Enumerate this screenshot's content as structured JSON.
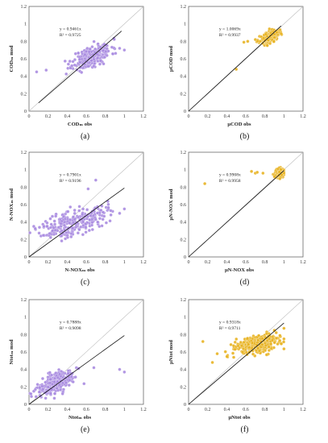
{
  "chart_data": [
    {
      "type": "scatter",
      "panel": "(a)",
      "xlabel": "CODₘ obs",
      "ylabel": "CODₘ mod",
      "xlim": [
        0,
        1.2
      ],
      "ylim": [
        0,
        1.2
      ],
      "ticks": [
        "0",
        "0.2",
        "0.4",
        "0.6",
        "0.8",
        "1",
        "1.2"
      ],
      "color": "#a98be0",
      "equation": "y = 0.9461x",
      "r2": "R² = 0.9725",
      "slope": 0.9461,
      "fit_range": [
        0.1,
        0.97
      ],
      "cloud": {
        "mx": 0.66,
        "my": 0.63,
        "sx": 0.1,
        "sy": 0.07,
        "rho": 0.55,
        "n": 260,
        "seed": 11,
        "outliers": [
          [
            0.08,
            0.45
          ],
          [
            0.18,
            0.47
          ],
          [
            1.0,
            0.7
          ],
          [
            0.95,
            0.72
          ],
          [
            0.45,
            0.52
          ]
        ]
      }
    },
    {
      "type": "scatter",
      "panel": "(b)",
      "xlabel": "μCOD obs",
      "ylabel": "μCOD mod",
      "xlim": [
        0,
        1.2
      ],
      "ylim": [
        0,
        1.2
      ],
      "ticks": [
        "0",
        "0.2",
        "0.4",
        "0.6",
        "0.8",
        "1",
        "1.2"
      ],
      "color": "#e8b321",
      "equation": "y = 1.0069x",
      "r2": "R² = 0.9937",
      "slope": 1.0069,
      "fit_range": [
        0.0,
        0.97
      ],
      "cloud": {
        "mx": 0.85,
        "my": 0.85,
        "sx": 0.05,
        "sy": 0.035,
        "rho": 0.5,
        "n": 200,
        "seed": 23,
        "outliers": [
          [
            0.5,
            0.48
          ],
          [
            0.58,
            0.79
          ],
          [
            0.62,
            0.8
          ],
          [
            0.7,
            0.82
          ]
        ]
      }
    },
    {
      "type": "scatter",
      "panel": "(c)",
      "xlabel": "N-NOXₘ obs",
      "ylabel": "N-NOXₘ mod",
      "xlim": [
        0,
        1.2
      ],
      "ylim": [
        0,
        1.2
      ],
      "ticks": [
        "0",
        "0.2",
        "0.4",
        "0.6",
        "0.8",
        "1",
        "1.2"
      ],
      "color": "#a98be0",
      "equation": "y = 0.7901x",
      "r2": "R² = 0.9196",
      "slope": 0.7901,
      "fit_range": [
        0.0,
        1.0
      ],
      "cloud": {
        "mx": 0.47,
        "my": 0.4,
        "sx": 0.17,
        "sy": 0.09,
        "rho": 0.55,
        "n": 260,
        "seed": 37,
        "outliers": [
          [
            0.7,
            0.88
          ],
          [
            0.62,
            0.78
          ],
          [
            0.05,
            0.35
          ],
          [
            1.0,
            0.55
          ],
          [
            0.95,
            0.5
          ]
        ]
      }
    },
    {
      "type": "scatter",
      "panel": "(d)",
      "xlabel": "μN-NOX obs",
      "ylabel": "μN-NOX mod",
      "xlim": [
        0,
        1.2
      ],
      "ylim": [
        0,
        1.2
      ],
      "ticks": [
        "0",
        "0.2",
        "0.4",
        "0.6",
        "0.8",
        "1",
        "1.2"
      ],
      "color": "#e8b321",
      "equation": "y = 0.9908x",
      "r2": "R² = 0.9958",
      "slope": 0.9908,
      "fit_range": [
        0.0,
        1.0
      ],
      "cloud": {
        "mx": 0.95,
        "my": 0.96,
        "sx": 0.025,
        "sy": 0.03,
        "rho": 0.3,
        "n": 150,
        "seed": 51,
        "outliers": [
          [
            0.17,
            0.84
          ],
          [
            0.66,
            0.98
          ],
          [
            0.7,
            0.96
          ],
          [
            0.72,
            0.97
          ],
          [
            0.78,
            0.96
          ],
          [
            0.9,
            0.92
          ]
        ]
      }
    },
    {
      "type": "scatter",
      "panel": "(e)",
      "xlabel": "Ntotₘ obs",
      "ylabel": "Ntotₘ mod",
      "xlim": [
        0,
        1.2
      ],
      "ylim": [
        0,
        1.2
      ],
      "ticks": [
        "0",
        "0.2",
        "0.4",
        "0.6",
        "0.8",
        "1",
        "1.2"
      ],
      "color": "#a98be0",
      "equation": "y = 0.7888x",
      "r2": "R² = 0.9098",
      "slope": 0.7888,
      "fit_range": [
        0.0,
        1.0
      ],
      "cloud": {
        "mx": 0.27,
        "my": 0.23,
        "sx": 0.09,
        "sy": 0.07,
        "rho": 0.55,
        "n": 260,
        "seed": 67,
        "outliers": [
          [
            0.95,
            0.4
          ],
          [
            1.0,
            0.37
          ],
          [
            0.68,
            0.42
          ],
          [
            0.02,
            0.12
          ],
          [
            0.05,
            0.15
          ]
        ]
      }
    },
    {
      "type": "scatter",
      "panel": "(f)",
      "xlabel": "μNtot obs",
      "ylabel": "μNtot mod",
      "xlim": [
        0,
        1.2
      ],
      "ylim": [
        0,
        1.2
      ],
      "ticks": [
        "0",
        "0.2",
        "0.4",
        "0.6",
        "0.8",
        "1",
        "1.2"
      ],
      "color": "#e8b321",
      "equation": "y = 0.9318x",
      "r2": "R² = 0.9711",
      "slope": 0.9318,
      "fit_range": [
        0.0,
        1.0
      ],
      "cloud": {
        "mx": 0.72,
        "my": 0.69,
        "sx": 0.12,
        "sy": 0.055,
        "rho": 0.4,
        "n": 320,
        "seed": 83,
        "outliers": [
          [
            0.15,
            0.72
          ],
          [
            0.25,
            0.48
          ],
          [
            0.3,
            0.58
          ],
          [
            1.0,
            0.75
          ]
        ]
      }
    }
  ]
}
